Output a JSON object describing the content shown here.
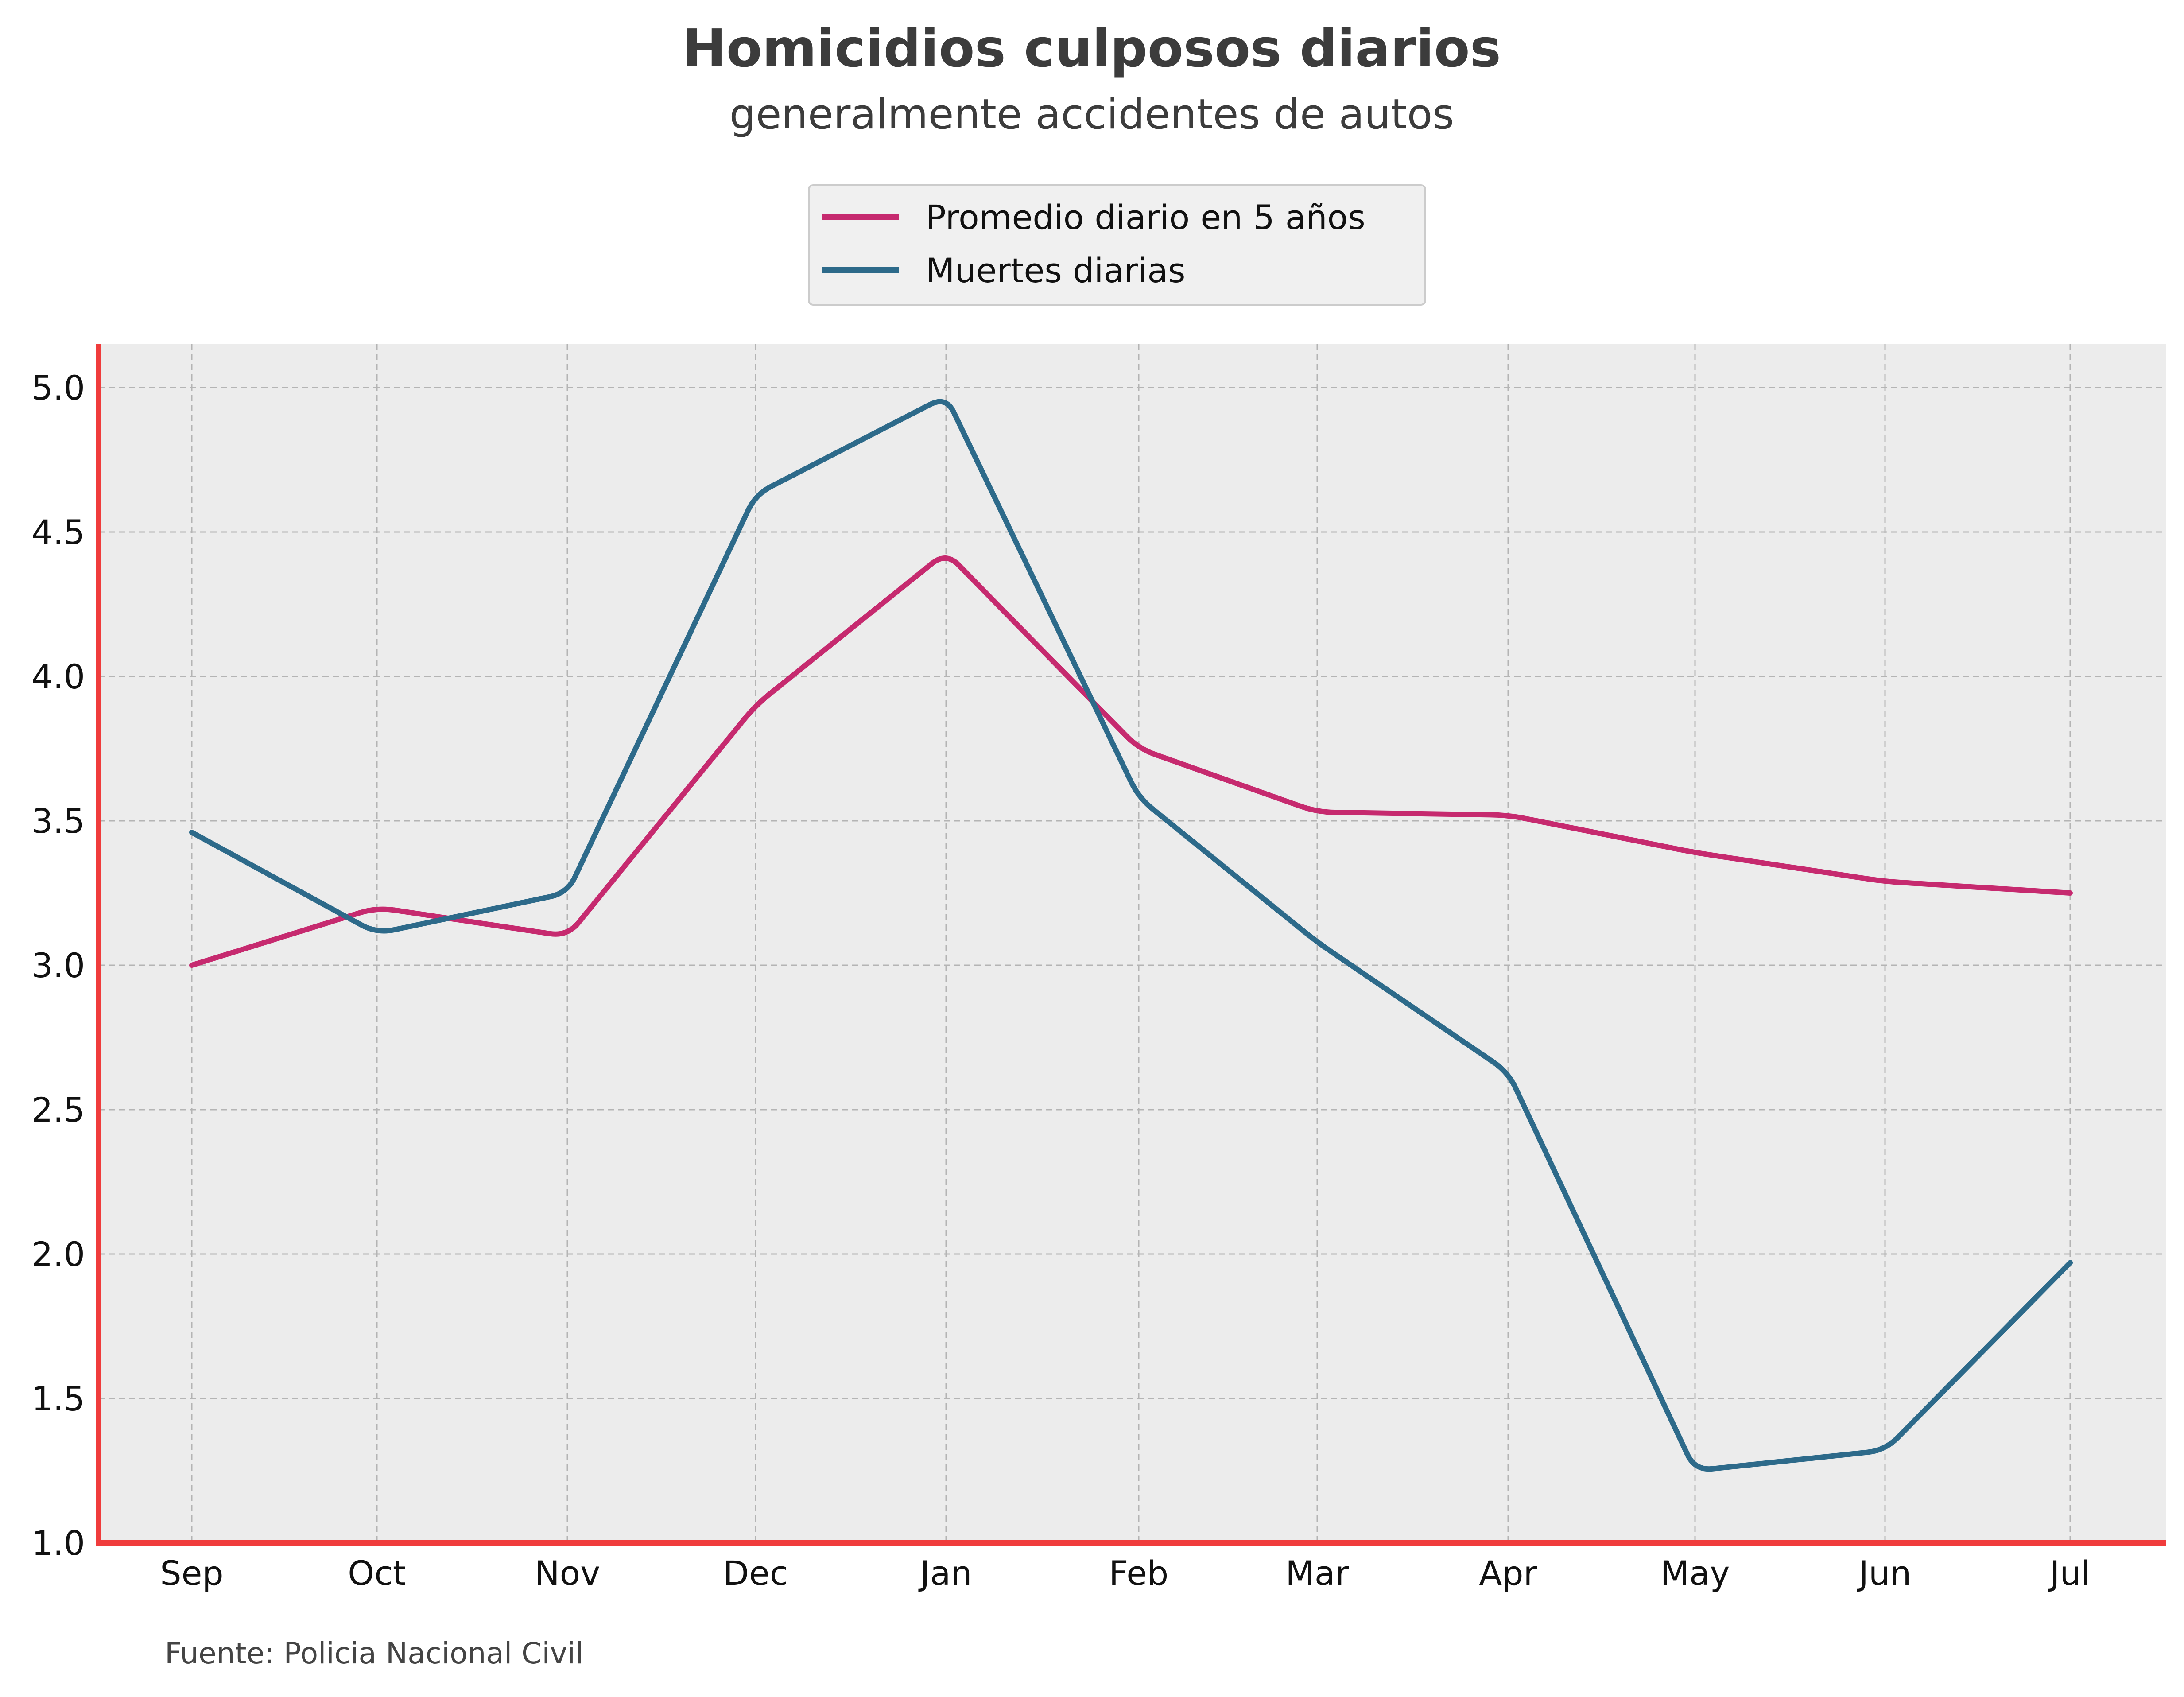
{
  "chart_data": {
    "type": "line",
    "title": "Homicidios culposos diarios",
    "subtitle": "generalmente accidentes de autos",
    "source": "Fuente: Policia Nacional Civil",
    "categories": [
      "Sep",
      "Oct",
      "Nov",
      "Dec",
      "Jan",
      "Feb",
      "Mar",
      "Apr",
      "May",
      "Jun",
      "Jul"
    ],
    "ylim": [
      1.0,
      5.0
    ],
    "yticks": [
      "1.0",
      "1.5",
      "2.0",
      "2.5",
      "3.0",
      "3.5",
      "4.0",
      "4.5",
      "5.0"
    ],
    "grid": true,
    "legend_position": "top-center",
    "colors": {
      "background": "#ececec",
      "grid": "#b4b4b4",
      "axis": "#f03c3c",
      "legend_bg": "#f0f0f0",
      "legend_border": "#cccccc"
    },
    "series": [
      {
        "name": "Promedio diario en 5 años",
        "color": "#c62a6f",
        "values": [
          3.0,
          3.2,
          3.1,
          3.9,
          4.43,
          3.75,
          3.53,
          3.52,
          3.39,
          3.29,
          3.25
        ]
      },
      {
        "name": "Muertes diarias",
        "color": "#2d6a8a",
        "values": [
          3.46,
          3.11,
          3.25,
          4.63,
          4.97,
          3.58,
          3.08,
          2.63,
          1.25,
          1.32,
          1.97
        ]
      }
    ]
  }
}
